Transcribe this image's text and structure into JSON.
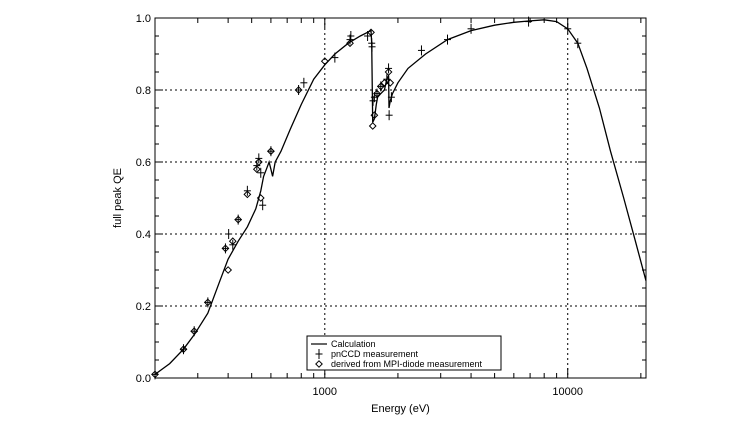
{
  "chart_data": {
    "type": "scatter",
    "title": "",
    "xlabel": "Energy (eV)",
    "ylabel": "full peak QE",
    "x_scale": "log",
    "xlim": [
      200,
      21000
    ],
    "ylim": [
      0,
      1.0
    ],
    "grid": "dotted, at major ticks",
    "legend_position": "bottom-center",
    "x_ticks": [
      {
        "value": 1000,
        "label": "1000"
      },
      {
        "value": 10000,
        "label": "10000"
      }
    ],
    "y_ticks": [
      {
        "value": 0.0,
        "label": "0.0"
      },
      {
        "value": 0.2,
        "label": "0.2"
      },
      {
        "value": 0.4,
        "label": "0.4"
      },
      {
        "value": 0.6,
        "label": "0.6"
      },
      {
        "value": 0.8,
        "label": "0.8"
      },
      {
        "value": 1.0,
        "label": "1.0"
      }
    ],
    "series": [
      {
        "name": "Calculation",
        "style": "line",
        "points": [
          [
            200,
            0.01
          ],
          [
            230,
            0.04
          ],
          [
            262,
            0.08
          ],
          [
            290,
            0.12
          ],
          [
            330,
            0.18
          ],
          [
            370,
            0.27
          ],
          [
            400,
            0.33
          ],
          [
            440,
            0.38
          ],
          [
            480,
            0.42
          ],
          [
            520,
            0.47
          ],
          [
            545,
            0.52
          ],
          [
            560,
            0.56
          ],
          [
            575,
            0.58
          ],
          [
            590,
            0.6
          ],
          [
            600,
            0.58
          ],
          [
            610,
            0.56
          ],
          [
            625,
            0.6
          ],
          [
            660,
            0.63
          ],
          [
            720,
            0.69
          ],
          [
            800,
            0.76
          ],
          [
            900,
            0.83
          ],
          [
            1000,
            0.87
          ],
          [
            1100,
            0.9
          ],
          [
            1250,
            0.93
          ],
          [
            1400,
            0.95
          ],
          [
            1550,
            0.965
          ],
          [
            1560,
            0.93
          ],
          [
            1575,
            0.71
          ],
          [
            1600,
            0.72
          ],
          [
            1630,
            0.76
          ],
          [
            1650,
            0.78
          ],
          [
            1700,
            0.79
          ],
          [
            1760,
            0.8
          ],
          [
            1800,
            0.83
          ],
          [
            1830,
            0.84
          ],
          [
            1838,
            0.75
          ],
          [
            1860,
            0.77
          ],
          [
            1900,
            0.79
          ],
          [
            2000,
            0.82
          ],
          [
            2200,
            0.86
          ],
          [
            2600,
            0.9
          ],
          [
            3200,
            0.94
          ],
          [
            4000,
            0.965
          ],
          [
            5000,
            0.98
          ],
          [
            6000,
            0.988
          ],
          [
            7000,
            0.992
          ],
          [
            8000,
            0.995
          ],
          [
            9000,
            0.99
          ],
          [
            10000,
            0.97
          ],
          [
            11000,
            0.93
          ],
          [
            12000,
            0.86
          ],
          [
            13500,
            0.75
          ],
          [
            15000,
            0.63
          ],
          [
            17000,
            0.5
          ],
          [
            19000,
            0.38
          ],
          [
            21000,
            0.27
          ]
        ]
      },
      {
        "name": "pnCCD measurement",
        "style": "plus",
        "points": [
          [
            200,
            0.01
          ],
          [
            262,
            0.08
          ],
          [
            290,
            0.13
          ],
          [
            330,
            0.21
          ],
          [
            390,
            0.36
          ],
          [
            402,
            0.4
          ],
          [
            418,
            0.37
          ],
          [
            440,
            0.44
          ],
          [
            480,
            0.52
          ],
          [
            525,
            0.59
          ],
          [
            535,
            0.61
          ],
          [
            545,
            0.57
          ],
          [
            555,
            0.48
          ],
          [
            600,
            0.63
          ],
          [
            780,
            0.8
          ],
          [
            820,
            0.82
          ],
          [
            1100,
            0.89
          ],
          [
            1270,
            0.94
          ],
          [
            1280,
            0.95
          ],
          [
            1500,
            0.95
          ],
          [
            1560,
            0.93
          ],
          [
            1565,
            0.92
          ],
          [
            1580,
            0.77
          ],
          [
            1600,
            0.78
          ],
          [
            1640,
            0.79
          ],
          [
            1700,
            0.81
          ],
          [
            1800,
            0.83
          ],
          [
            1830,
            0.86
          ],
          [
            1840,
            0.73
          ],
          [
            1880,
            0.78
          ],
          [
            2500,
            0.91
          ],
          [
            3200,
            0.94
          ],
          [
            4000,
            0.97
          ],
          [
            6900,
            0.99
          ],
          [
            10000,
            0.97
          ],
          [
            11000,
            0.93
          ]
        ]
      },
      {
        "name": "derived from MPI-diode measurement",
        "style": "diamond",
        "points": [
          [
            200,
            0.01
          ],
          [
            262,
            0.08
          ],
          [
            290,
            0.13
          ],
          [
            330,
            0.21
          ],
          [
            390,
            0.36
          ],
          [
            400,
            0.3
          ],
          [
            418,
            0.38
          ],
          [
            440,
            0.44
          ],
          [
            480,
            0.51
          ],
          [
            525,
            0.58
          ],
          [
            535,
            0.6
          ],
          [
            545,
            0.5
          ],
          [
            600,
            0.63
          ],
          [
            780,
            0.8
          ],
          [
            1000,
            0.88
          ],
          [
            1270,
            0.93
          ],
          [
            1550,
            0.96
          ],
          [
            1575,
            0.7
          ],
          [
            1600,
            0.73
          ],
          [
            1640,
            0.79
          ],
          [
            1700,
            0.81
          ],
          [
            1760,
            0.82
          ],
          [
            1830,
            0.85
          ],
          [
            1860,
            0.82
          ]
        ]
      }
    ]
  }
}
